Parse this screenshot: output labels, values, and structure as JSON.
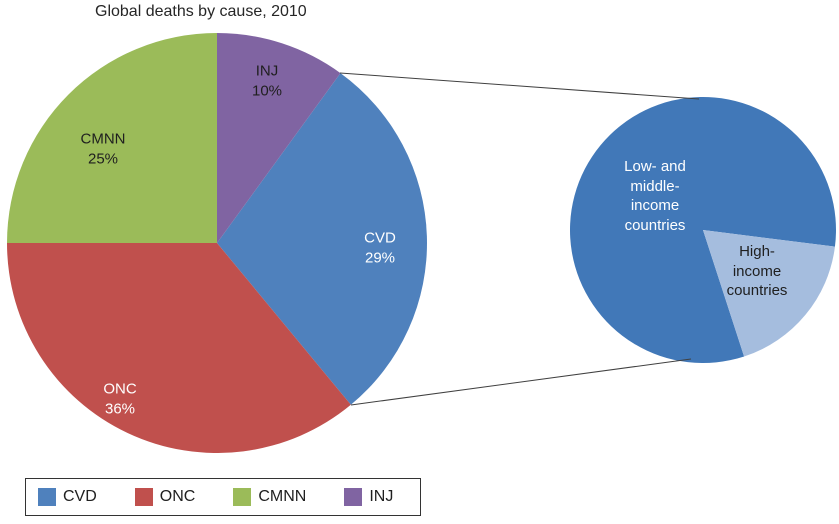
{
  "title": "Global deaths by cause, 2010",
  "colors": {
    "cvd_blue": "#4f81bd",
    "onc_red": "#c0504d",
    "cmnn_green": "#9bbb59",
    "inj_purple": "#8064a2",
    "low_middle_income_blue": "#4178b8",
    "high_income_light_blue": "#a5bdde",
    "connector_line": "#404040",
    "label_dark": "#1f1f1f",
    "label_light": "#ffffff"
  },
  "chart_data": [
    {
      "type": "pie",
      "title": "Global deaths by cause, 2010",
      "legend_position": "bottom-left",
      "start_angle_deg": 36,
      "slices": [
        {
          "label": "CVD",
          "value": 29,
          "pct_label": "29%",
          "color": "#4f81bd",
          "text_color": "#ffffff"
        },
        {
          "label": "ONC",
          "value": 36,
          "pct_label": "36%",
          "color": "#c0504d",
          "text_color": "#ffffff"
        },
        {
          "label": "CMNN",
          "value": 25,
          "pct_label": "25%",
          "color": "#9bbb59",
          "text_color": "#1f1f1f"
        },
        {
          "label": "INJ",
          "value": 10,
          "pct_label": "10%",
          "color": "#8064a2",
          "text_color": "#1f1f1f"
        }
      ]
    },
    {
      "type": "pie",
      "start_angle_deg": 162,
      "slices": [
        {
          "label": "Low- and middle-income countries",
          "value": 82,
          "color": "#4178b8",
          "text_color": "#ffffff"
        },
        {
          "label": "High-income countries",
          "value": 18,
          "color": "#a5bdde",
          "text_color": "#1f1f1f"
        }
      ]
    }
  ],
  "legend": {
    "items": [
      "CVD",
      "ONC",
      "CMNN",
      "INJ"
    ]
  }
}
